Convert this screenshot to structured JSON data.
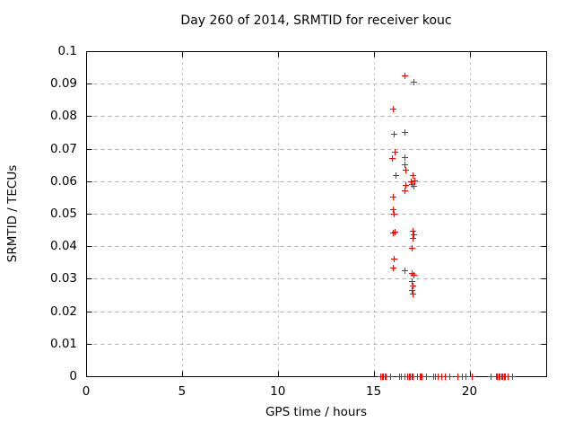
{
  "chart_data": {
    "type": "scatter",
    "title": "Day 260 of 2014, SRMTID for receiver kouc",
    "xlabel": "GPS time / hours",
    "ylabel": "SRMTID / TECUs",
    "xlim": [
      0,
      24
    ],
    "ylim": [
      0,
      0.1
    ],
    "x_ticks": {
      "values": [
        0,
        5,
        10,
        15,
        20
      ],
      "labels": [
        "0",
        "5",
        "10",
        "15",
        "20"
      ]
    },
    "y_ticks": {
      "values": [
        0,
        0.01,
        0.02,
        0.03,
        0.04,
        0.05,
        0.06,
        0.07,
        0.08,
        0.09,
        0.1
      ],
      "labels": [
        "0",
        "0.01",
        "0.02",
        "0.03",
        "0.04",
        "0.05",
        "0.06",
        "0.07",
        "0.08",
        "0.09",
        "0.1"
      ]
    },
    "grid": true,
    "legend": "none",
    "marker_shape": "plus",
    "marker_color": "#ff0000",
    "grid_color": "#b0b0b0",
    "border_color": "#000000",
    "background": "#ffffff",
    "series": [
      {
        "name": "srmtid",
        "points": [
          [
            16.6,
            0.0925
          ],
          [
            17.08,
            0.0905
          ],
          [
            15.98,
            0.0822
          ],
          [
            16.03,
            0.0745
          ],
          [
            16.62,
            0.0752
          ],
          [
            16.1,
            0.069
          ],
          [
            15.97,
            0.0671
          ],
          [
            16.63,
            0.0674
          ],
          [
            16.6,
            0.0653
          ],
          [
            16.66,
            0.0635
          ],
          [
            16.12,
            0.062
          ],
          [
            17.02,
            0.062
          ],
          [
            16.94,
            0.06
          ],
          [
            17.1,
            0.0601
          ],
          [
            17.0,
            0.0592
          ],
          [
            17.07,
            0.0585
          ],
          [
            16.64,
            0.0588
          ],
          [
            16.6,
            0.0573
          ],
          [
            16.02,
            0.0552
          ],
          [
            16.02,
            0.0513
          ],
          [
            16.04,
            0.0501
          ],
          [
            15.98,
            0.0443
          ],
          [
            16.08,
            0.0445
          ],
          [
            17.04,
            0.0448
          ],
          [
            17.08,
            0.0436
          ],
          [
            17.04,
            0.0425
          ],
          [
            17.0,
            0.0394
          ],
          [
            16.04,
            0.0363
          ],
          [
            16.02,
            0.0334
          ],
          [
            16.59,
            0.0325
          ],
          [
            16.99,
            0.0318
          ],
          [
            17.09,
            0.0313
          ],
          [
            17.0,
            0.0294
          ],
          [
            17.02,
            0.028
          ],
          [
            16.98,
            0.0266
          ],
          [
            17.02,
            0.0255
          ],
          [
            15.36,
            0
          ],
          [
            15.42,
            0
          ],
          [
            15.5,
            0
          ],
          [
            15.58,
            0
          ],
          [
            15.64,
            0
          ],
          [
            15.84,
            0
          ],
          [
            16.35,
            0
          ],
          [
            16.43,
            0
          ],
          [
            16.61,
            0
          ],
          [
            16.77,
            0
          ],
          [
            16.84,
            0
          ],
          [
            16.9,
            0
          ],
          [
            16.97,
            0
          ],
          [
            17.05,
            0
          ],
          [
            17.24,
            0
          ],
          [
            17.4,
            0
          ],
          [
            17.46,
            0
          ],
          [
            17.52,
            0
          ],
          [
            17.73,
            0
          ],
          [
            18.11,
            0
          ],
          [
            18.2,
            0
          ],
          [
            18.32,
            0
          ],
          [
            18.53,
            0
          ],
          [
            18.72,
            0
          ],
          [
            18.94,
            0
          ],
          [
            19.35,
            0
          ],
          [
            19.59,
            0
          ],
          [
            19.77,
            0
          ],
          [
            20.1,
            0
          ],
          [
            21.08,
            0
          ],
          [
            21.39,
            0
          ],
          [
            21.45,
            0
          ],
          [
            21.52,
            0
          ],
          [
            21.58,
            0
          ],
          [
            21.65,
            0
          ],
          [
            21.72,
            0
          ],
          [
            21.79,
            0
          ],
          [
            21.86,
            0
          ],
          [
            22.01,
            0
          ],
          [
            22.2,
            0
          ]
        ]
      }
    ]
  }
}
